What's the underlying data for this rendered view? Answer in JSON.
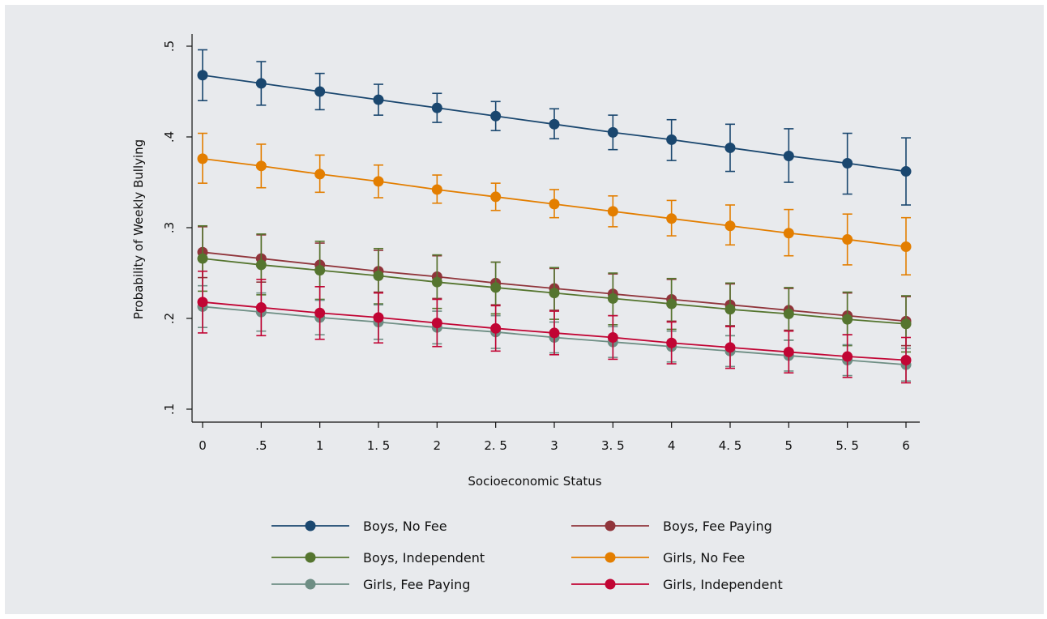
{
  "chart_data": {
    "type": "line",
    "title": "",
    "xlabel": "Socioeconomic Status",
    "ylabel": "Probability of Weekly Bullying",
    "x": [
      0,
      0.5,
      1,
      1.5,
      2,
      2.5,
      3,
      3.5,
      4,
      4.5,
      5,
      5.5,
      6
    ],
    "x_tick_labels": [
      "0",
      ".5",
      "1",
      "1. 5",
      "2",
      "2. 5",
      "3",
      "3. 5",
      "4",
      "4. 5",
      "5",
      "5. 5",
      "6"
    ],
    "y_ticks": [
      0.1,
      0.2,
      0.3,
      0.4,
      0.5
    ],
    "y_tick_labels": [
      ".1",
      ".2",
      ".3",
      ".4",
      ".5"
    ],
    "xlim": [
      0,
      6
    ],
    "ylim": [
      0.1,
      0.5
    ],
    "grid": false,
    "legend_position": "bottom",
    "series": [
      {
        "name": "Boys, No Fee",
        "color": "#1a476f",
        "values": [
          0.468,
          0.459,
          0.45,
          0.441,
          0.432,
          0.423,
          0.414,
          0.405,
          0.397,
          0.388,
          0.379,
          0.371,
          0.362
        ],
        "lower": [
          0.44,
          0.435,
          0.43,
          0.424,
          0.416,
          0.407,
          0.398,
          0.386,
          0.374,
          0.362,
          0.35,
          0.337,
          0.325
        ],
        "upper": [
          0.496,
          0.483,
          0.47,
          0.458,
          0.448,
          0.439,
          0.431,
          0.424,
          0.419,
          0.414,
          0.409,
          0.404,
          0.399
        ]
      },
      {
        "name": "Boys, Fee Paying",
        "color": "#90353b",
        "values": [
          0.273,
          0.266,
          0.259,
          0.252,
          0.246,
          0.239,
          0.233,
          0.227,
          0.221,
          0.215,
          0.209,
          0.203,
          0.197
        ],
        "lower": [
          0.245,
          0.24,
          0.235,
          0.229,
          0.222,
          0.215,
          0.209,
          0.203,
          0.197,
          0.192,
          0.187,
          0.182,
          0.17
        ],
        "upper": [
          0.301,
          0.292,
          0.283,
          0.275,
          0.269,
          0.262,
          0.255,
          0.249,
          0.243,
          0.238,
          0.233,
          0.228,
          0.224
        ]
      },
      {
        "name": "Boys, Independent",
        "color": "#55752f",
        "values": [
          0.266,
          0.259,
          0.253,
          0.247,
          0.24,
          0.234,
          0.228,
          0.222,
          0.216,
          0.21,
          0.205,
          0.199,
          0.194
        ],
        "lower": [
          0.23,
          0.226,
          0.221,
          0.216,
          0.211,
          0.205,
          0.199,
          0.193,
          0.188,
          0.181,
          0.176,
          0.17,
          0.163
        ],
        "upper": [
          0.302,
          0.293,
          0.285,
          0.277,
          0.27,
          0.262,
          0.256,
          0.25,
          0.244,
          0.239,
          0.234,
          0.229,
          0.225
        ]
      },
      {
        "name": "Girls, No Fee",
        "color": "#e37e00",
        "values": [
          0.376,
          0.368,
          0.359,
          0.351,
          0.342,
          0.334,
          0.326,
          0.318,
          0.31,
          0.302,
          0.294,
          0.287,
          0.279
        ],
        "lower": [
          0.349,
          0.344,
          0.339,
          0.333,
          0.327,
          0.319,
          0.311,
          0.301,
          0.291,
          0.281,
          0.269,
          0.259,
          0.248
        ],
        "upper": [
          0.404,
          0.392,
          0.38,
          0.369,
          0.358,
          0.349,
          0.342,
          0.335,
          0.33,
          0.325,
          0.32,
          0.315,
          0.311
        ]
      },
      {
        "name": "Girls, Fee Paying",
        "color": "#6e8e84",
        "values": [
          0.213,
          0.207,
          0.201,
          0.196,
          0.19,
          0.185,
          0.179,
          0.174,
          0.169,
          0.164,
          0.159,
          0.154,
          0.149
        ],
        "lower": [
          0.19,
          0.186,
          0.182,
          0.177,
          0.172,
          0.167,
          0.162,
          0.157,
          0.152,
          0.147,
          0.142,
          0.137,
          0.131
        ],
        "upper": [
          0.236,
          0.228,
          0.22,
          0.215,
          0.208,
          0.203,
          0.196,
          0.191,
          0.186,
          0.181,
          0.176,
          0.171,
          0.167
        ]
      },
      {
        "name": "Girls, Independent",
        "color": "#c10534",
        "values": [
          0.218,
          0.212,
          0.206,
          0.201,
          0.195,
          0.189,
          0.184,
          0.179,
          0.173,
          0.168,
          0.163,
          0.158,
          0.154
        ],
        "lower": [
          0.184,
          0.181,
          0.177,
          0.173,
          0.169,
          0.164,
          0.16,
          0.155,
          0.15,
          0.145,
          0.14,
          0.135,
          0.129
        ],
        "upper": [
          0.252,
          0.243,
          0.235,
          0.228,
          0.221,
          0.214,
          0.208,
          0.203,
          0.196,
          0.191,
          0.186,
          0.182,
          0.179
        ]
      }
    ]
  }
}
